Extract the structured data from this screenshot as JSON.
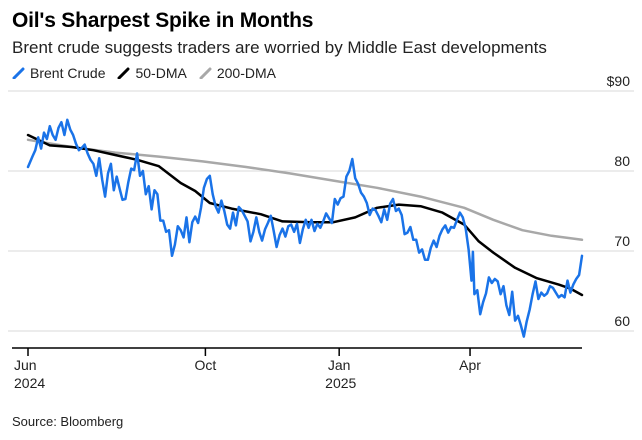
{
  "header": {
    "title": "Oil's Sharpest Spike in Months",
    "subtitle": "Brent crude suggests traders are worried by Middle East developments"
  },
  "footer": {
    "source": "Source: Bloomberg"
  },
  "colors": {
    "brent": "#1a73e8",
    "dma50": "#000000",
    "dma200": "#a8a8a8",
    "grid": "#d9d9d9",
    "axis": "#000000"
  },
  "chart_data": {
    "type": "line",
    "title": "Oil's Sharpest Spike in Months",
    "subtitle": "Brent crude suggests traders are worried by Middle East developments",
    "xlabel": "",
    "ylabel": "",
    "ylim": [
      58,
      90
    ],
    "xlim": [
      0,
      381
    ],
    "y_ticks": [
      {
        "value": 90,
        "label": "$90"
      },
      {
        "value": 80,
        "label": "80"
      },
      {
        "value": 70,
        "label": "70"
      },
      {
        "value": 60,
        "label": "60"
      }
    ],
    "x_ticks": [
      {
        "day": 0,
        "label": "Jun",
        "sublabel": "2024"
      },
      {
        "day": 122,
        "label": "Oct",
        "sublabel": ""
      },
      {
        "day": 214,
        "label": "Jan",
        "sublabel": "2025"
      },
      {
        "day": 304,
        "label": "Apr",
        "sublabel": ""
      }
    ],
    "legend_position": "top-left",
    "series": [
      {
        "name": "Brent Crude",
        "key": "brent",
        "points": [
          [
            0,
            80.5
          ],
          [
            3,
            81.8
          ],
          [
            5,
            82.6
          ],
          [
            7,
            84.2
          ],
          [
            9,
            82.8
          ],
          [
            11,
            84.8
          ],
          [
            13,
            84.0
          ],
          [
            15,
            85.6
          ],
          [
            17,
            84.5
          ],
          [
            19,
            83.9
          ],
          [
            21,
            85.4
          ],
          [
            23,
            86.1
          ],
          [
            25,
            84.5
          ],
          [
            27,
            86.4
          ],
          [
            29,
            85.2
          ],
          [
            31,
            84.5
          ],
          [
            33,
            83.4
          ],
          [
            35,
            82.6
          ],
          [
            37,
            82.9
          ],
          [
            39,
            83.3
          ],
          [
            41,
            82.2
          ],
          [
            43,
            81.4
          ],
          [
            45,
            80.9
          ],
          [
            47,
            79.4
          ],
          [
            49,
            81.6
          ],
          [
            51,
            78.9
          ],
          [
            53,
            76.8
          ],
          [
            55,
            79.7
          ],
          [
            57,
            80.9
          ],
          [
            59,
            77.6
          ],
          [
            61,
            79.3
          ],
          [
            63,
            77.8
          ],
          [
            65,
            76.4
          ],
          [
            67,
            76.5
          ],
          [
            69,
            78.6
          ],
          [
            71,
            80.3
          ],
          [
            73,
            80.1
          ],
          [
            75,
            82.2
          ],
          [
            77,
            79.4
          ],
          [
            79,
            80.0
          ],
          [
            81,
            77.1
          ],
          [
            83,
            78.1
          ],
          [
            85,
            75.2
          ],
          [
            87,
            77.6
          ],
          [
            89,
            77.1
          ],
          [
            91,
            73.8
          ],
          [
            93,
            73.8
          ],
          [
            95,
            72.4
          ],
          [
            97,
            72.6
          ],
          [
            99,
            69.4
          ],
          [
            101,
            70.8
          ],
          [
            103,
            73.1
          ],
          [
            105,
            72.6
          ],
          [
            107,
            71.7
          ],
          [
            109,
            74.2
          ],
          [
            111,
            71.1
          ],
          [
            113,
            73.6
          ],
          [
            115,
            74.3
          ],
          [
            117,
            73.5
          ],
          [
            119,
            75.4
          ],
          [
            121,
            77.9
          ],
          [
            123,
            79.0
          ],
          [
            125,
            79.4
          ],
          [
            127,
            77.1
          ],
          [
            129,
            75.6
          ],
          [
            131,
            74.8
          ],
          [
            133,
            76.3
          ],
          [
            135,
            75.0
          ],
          [
            137,
            73.3
          ],
          [
            139,
            72.8
          ],
          [
            141,
            74.8
          ],
          [
            143,
            73.2
          ],
          [
            145,
            75.5
          ],
          [
            147,
            75.1
          ],
          [
            149,
            74.4
          ],
          [
            151,
            73.7
          ],
          [
            153,
            71.2
          ],
          [
            155,
            72.4
          ],
          [
            157,
            74.2
          ],
          [
            159,
            72.4
          ],
          [
            161,
            71.3
          ],
          [
            163,
            72.7
          ],
          [
            165,
            73.5
          ],
          [
            167,
            74.4
          ],
          [
            169,
            72.5
          ],
          [
            171,
            70.5
          ],
          [
            173,
            72.0
          ],
          [
            175,
            72.8
          ],
          [
            177,
            71.8
          ],
          [
            179,
            73.1
          ],
          [
            181,
            73.3
          ],
          [
            183,
            72.4
          ],
          [
            185,
            73.4
          ],
          [
            187,
            71.0
          ],
          [
            189,
            72.7
          ],
          [
            191,
            73.9
          ],
          [
            193,
            72.9
          ],
          [
            195,
            73.9
          ],
          [
            197,
            72.5
          ],
          [
            199,
            73.4
          ],
          [
            201,
            72.9
          ],
          [
            203,
            73.7
          ],
          [
            205,
            74.7
          ],
          [
            207,
            74.1
          ],
          [
            209,
            73.5
          ],
          [
            211,
            76.5
          ],
          [
            213,
            75.8
          ],
          [
            215,
            76.6
          ],
          [
            217,
            76.8
          ],
          [
            219,
            79.3
          ],
          [
            221,
            80.0
          ],
          [
            223,
            81.5
          ],
          [
            225,
            79.1
          ],
          [
            227,
            78.4
          ],
          [
            229,
            77.3
          ],
          [
            231,
            76.8
          ],
          [
            233,
            76.0
          ],
          [
            235,
            74.5
          ],
          [
            237,
            75.3
          ],
          [
            239,
            75.1
          ],
          [
            241,
            74.4
          ],
          [
            243,
            73.6
          ],
          [
            245,
            75.2
          ],
          [
            247,
            73.9
          ],
          [
            249,
            75.9
          ],
          [
            251,
            76.5
          ],
          [
            253,
            75.0
          ],
          [
            255,
            75.3
          ],
          [
            257,
            74.5
          ],
          [
            259,
            72.1
          ],
          [
            261,
            72.3
          ],
          [
            263,
            73.0
          ],
          [
            265,
            71.4
          ],
          [
            267,
            71.4
          ],
          [
            269,
            69.8
          ],
          [
            271,
            70.2
          ],
          [
            273,
            68.9
          ],
          [
            275,
            68.9
          ],
          [
            277,
            70.4
          ],
          [
            279,
            71.3
          ],
          [
            281,
            70.5
          ],
          [
            283,
            71.9
          ],
          [
            285,
            72.7
          ],
          [
            287,
            73.2
          ],
          [
            289,
            72.3
          ],
          [
            291,
            73.0
          ],
          [
            293,
            72.9
          ],
          [
            295,
            73.9
          ],
          [
            297,
            74.8
          ],
          [
            299,
            74.2
          ],
          [
            301,
            72.8
          ],
          [
            303,
            70.2
          ],
          [
            305,
            66.3
          ],
          [
            306,
            69.9
          ],
          [
            307,
            64.6
          ],
          [
            309,
            65.1
          ],
          [
            311,
            62.1
          ],
          [
            313,
            63.6
          ],
          [
            315,
            64.7
          ],
          [
            317,
            66.7
          ],
          [
            319,
            66.0
          ],
          [
            321,
            66.5
          ],
          [
            323,
            66.2
          ],
          [
            325,
            64.6
          ],
          [
            327,
            65.6
          ],
          [
            329,
            63.2
          ],
          [
            331,
            62.0
          ],
          [
            333,
            64.9
          ],
          [
            335,
            61.3
          ],
          [
            337,
            61.9
          ],
          [
            339,
            60.7
          ],
          [
            341,
            59.3
          ],
          [
            343,
            61.2
          ],
          [
            345,
            62.7
          ],
          [
            347,
            64.6
          ],
          [
            349,
            66.2
          ],
          [
            351,
            64.0
          ],
          [
            353,
            64.8
          ],
          [
            355,
            64.4
          ],
          [
            357,
            64.7
          ],
          [
            359,
            65.6
          ],
          [
            361,
            65.4
          ],
          [
            363,
            64.8
          ],
          [
            365,
            64.2
          ],
          [
            367,
            64.5
          ],
          [
            369,
            64.2
          ],
          [
            371,
            66.3
          ],
          [
            373,
            64.8
          ],
          [
            375,
            65.8
          ],
          [
            377,
            66.5
          ],
          [
            379,
            67.0
          ],
          [
            381,
            69.4
          ]
        ]
      },
      {
        "name": "50-DMA",
        "key": "dma50",
        "points": [
          [
            0,
            84.5
          ],
          [
            15,
            83.2
          ],
          [
            30,
            83.0
          ],
          [
            45,
            82.6
          ],
          [
            60,
            82.0
          ],
          [
            75,
            81.4
          ],
          [
            90,
            80.6
          ],
          [
            105,
            78.5
          ],
          [
            115,
            77.5
          ],
          [
            125,
            76.0
          ],
          [
            140,
            75.3
          ],
          [
            160,
            74.6
          ],
          [
            175,
            73.7
          ],
          [
            195,
            73.6
          ],
          [
            210,
            73.6
          ],
          [
            225,
            74.2
          ],
          [
            240,
            75.4
          ],
          [
            255,
            75.8
          ],
          [
            270,
            75.6
          ],
          [
            285,
            74.8
          ],
          [
            300,
            73.3
          ],
          [
            310,
            71.2
          ],
          [
            320,
            69.8
          ],
          [
            335,
            67.9
          ],
          [
            350,
            66.6
          ],
          [
            365,
            65.8
          ],
          [
            373,
            65.3
          ],
          [
            381,
            64.5
          ]
        ]
      },
      {
        "name": "200-DMA",
        "key": "dma200",
        "points": [
          [
            0,
            83.9
          ],
          [
            30,
            83.0
          ],
          [
            60,
            82.3
          ],
          [
            90,
            81.8
          ],
          [
            120,
            81.2
          ],
          [
            150,
            80.5
          ],
          [
            180,
            79.7
          ],
          [
            210,
            78.8
          ],
          [
            240,
            77.9
          ],
          [
            270,
            76.8
          ],
          [
            300,
            75.4
          ],
          [
            320,
            73.9
          ],
          [
            340,
            72.6
          ],
          [
            360,
            71.9
          ],
          [
            381,
            71.4
          ]
        ]
      }
    ]
  }
}
